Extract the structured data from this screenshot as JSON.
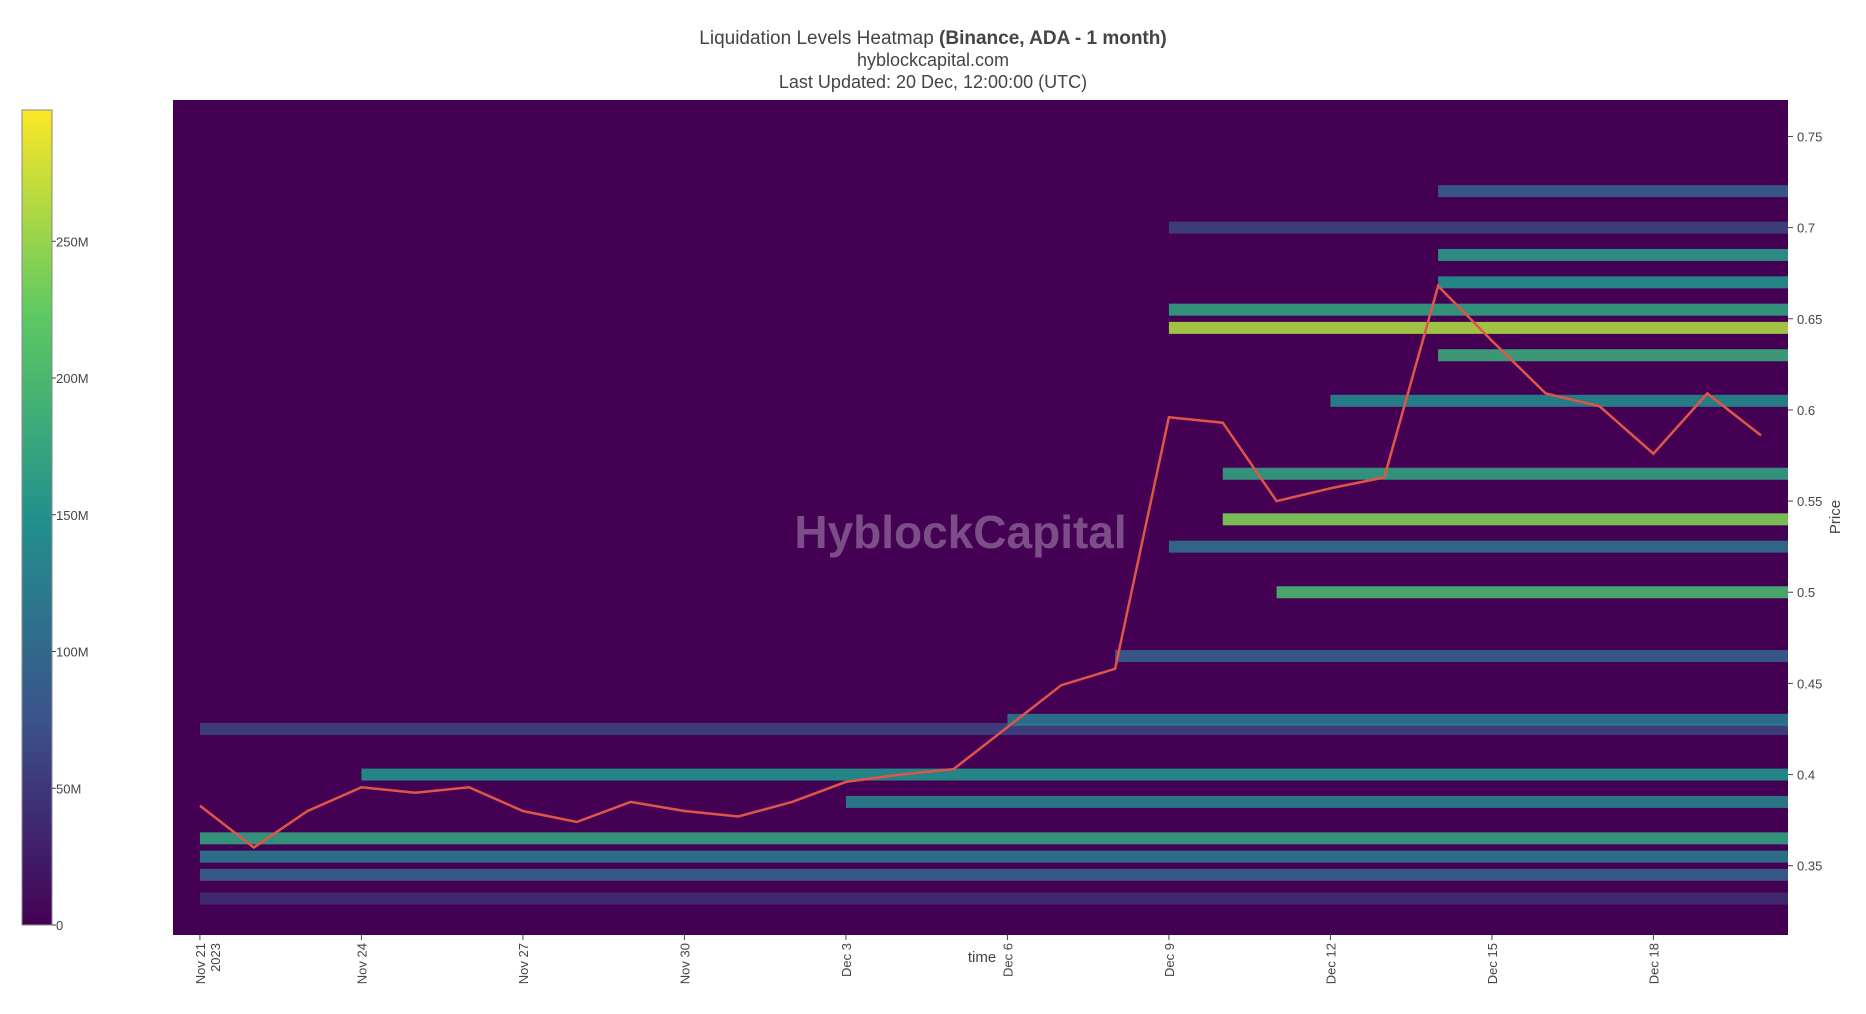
{
  "chart_data": {
    "type": "heatmap",
    "title": "Liquidation Levels Heatmap ",
    "title_bold": "(Binance, ADA - 1 month)",
    "subtitle": "hyblockcapital.com",
    "updated": "Last Updated: 20 Dec, 12:00:00 (UTC)",
    "watermark": "HyblockCapital",
    "xlabel": "time",
    "ylabel": "Price",
    "xlim": [
      "2023-11-20T12:00",
      "2023-12-20T12:00"
    ],
    "xticks": [
      {
        "value": "2023-11-21",
        "label": "Nov 21"
      },
      {
        "value": "2023-11-24",
        "label": "Nov 24"
      },
      {
        "value": "2023-11-27",
        "label": "Nov 27"
      },
      {
        "value": "2023-11-30",
        "label": "Nov 30"
      },
      {
        "value": "2023-12-03",
        "label": "Dec 3"
      },
      {
        "value": "2023-12-06",
        "label": "Dec 6"
      },
      {
        "value": "2023-12-09",
        "label": "Dec 9"
      },
      {
        "value": "2023-12-12",
        "label": "Dec 12"
      },
      {
        "value": "2023-12-15",
        "label": "Dec 15"
      },
      {
        "value": "2023-12-18",
        "label": "Dec 18"
      }
    ],
    "xtick_year": "2023",
    "ylim": [
      0.312,
      0.77
    ],
    "yticks": [
      0.35,
      0.4,
      0.45,
      0.5,
      0.55,
      0.6,
      0.65,
      0.7,
      0.75
    ],
    "colorscale": "Viridis",
    "zlim": [
      0,
      298
    ],
    "zticks": [
      0,
      {
        "value": 50,
        "label": "50M"
      },
      {
        "value": 100,
        "label": "100M"
      },
      {
        "value": 150,
        "label": "150M"
      },
      {
        "value": 200,
        "label": "200M"
      },
      {
        "value": 250,
        "label": "250M"
      }
    ],
    "background": "#440154",
    "levels": {
      "prices": [
        0.332,
        0.345,
        0.355,
        0.365,
        0.425,
        0.4,
        0.385,
        0.43,
        0.465,
        0.5,
        0.525,
        0.54,
        0.565,
        0.605,
        0.63,
        0.645,
        0.655,
        0.67,
        0.685,
        0.7,
        0.72
      ],
      "starts": [
        "2023-11-21",
        "2023-11-21",
        "2023-11-21",
        "2023-11-21",
        "2023-11-21",
        "2023-11-24",
        "2023-12-03",
        "2023-12-06",
        "2023-12-08",
        "2023-12-11",
        "2023-12-09",
        "2023-12-10",
        "2023-12-10",
        "2023-12-12",
        "2023-12-14",
        "2023-12-09",
        "2023-12-09",
        "2023-12-14",
        "2023-12-14",
        "2023-12-09",
        "2023-12-14"
      ],
      "values": [
        40,
        90,
        120,
        170,
        60,
        150,
        130,
        120,
        90,
        200,
        110,
        240,
        170,
        140,
        180,
        260,
        170,
        150,
        160,
        60,
        90
      ]
    },
    "price": {
      "color": "#e0554a",
      "x": [
        "2023-11-21",
        "2023-11-22",
        "2023-11-23",
        "2023-11-24",
        "2023-11-25",
        "2023-11-26",
        "2023-11-27",
        "2023-11-28",
        "2023-11-29",
        "2023-11-30",
        "2023-12-01",
        "2023-12-02",
        "2023-12-03",
        "2023-12-04",
        "2023-12-05",
        "2023-12-06",
        "2023-12-07",
        "2023-12-08",
        "2023-12-09",
        "2023-12-10",
        "2023-12-11",
        "2023-12-12",
        "2023-12-13",
        "2023-12-14",
        "2023-12-15",
        "2023-12-16",
        "2023-12-17",
        "2023-12-18",
        "2023-12-19",
        "2023-12-20"
      ],
      "values": [
        0.383,
        0.36,
        0.38,
        0.393,
        0.39,
        0.393,
        0.38,
        0.374,
        0.385,
        0.38,
        0.377,
        0.385,
        0.396,
        0.4,
        0.403,
        0.426,
        0.449,
        0.458,
        0.596,
        0.593,
        0.55,
        0.557,
        0.563,
        0.668,
        0.638,
        0.609,
        0.602,
        0.576,
        0.609,
        0.586
      ]
    }
  }
}
